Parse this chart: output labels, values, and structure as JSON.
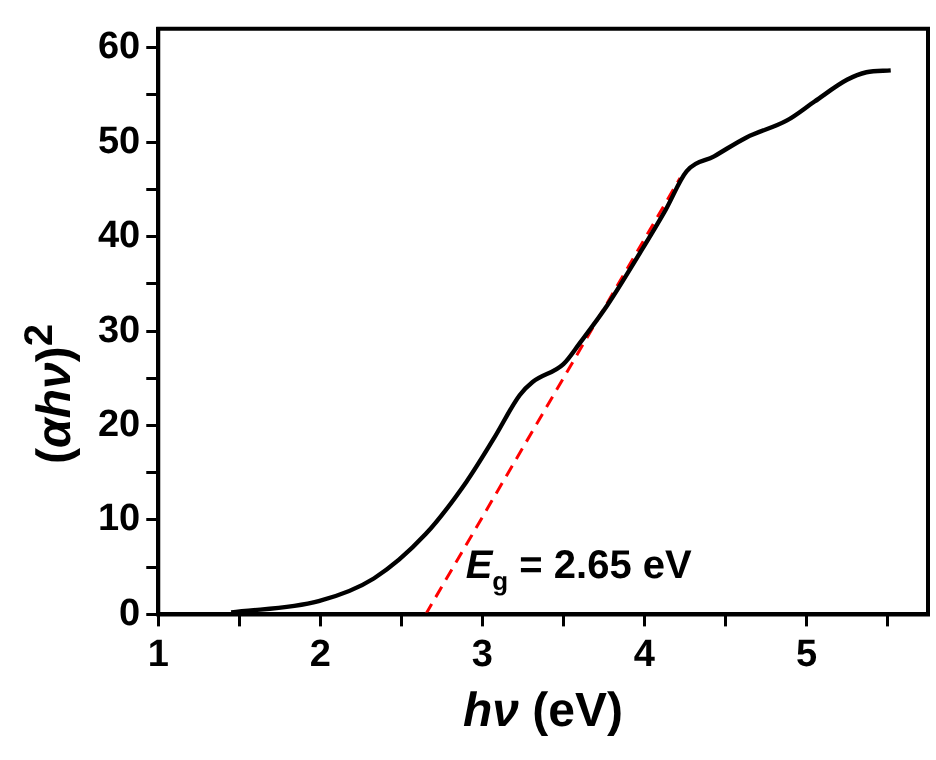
{
  "chart_data": {
    "type": "line",
    "xlabel": "hν (eV)",
    "ylabel": "(αhν)$^{2}$",
    "x": [
      1.45,
      1.99,
      2.33,
      2.65,
      2.9,
      3.07,
      3.23,
      3.31,
      3.5,
      3.6,
      3.77,
      3.97,
      4.13,
      4.26,
      4.43,
      4.63,
      4.88,
      5.05,
      5.25,
      5.37,
      5.52
    ],
    "series": [
      {
        "color": "#000000",
        "values": [
          0.2,
          1.4,
          3.8,
          8.5,
          14,
          18.6,
          23.2,
          24.6,
          26.5,
          28.7,
          32.7,
          38.2,
          42.8,
          46.9,
          48.5,
          50.5,
          52.3,
          54.3,
          56.6,
          57.4,
          57.6
        ]
      },
      {
        "type": "line",
        "color": "#ff0000",
        "line_style": "dashed",
        "x": [
          2.65,
          4.22
        ],
        "values": [
          0,
          46.2
        ]
      }
    ],
    "xlim": [
      1,
      5.75
    ],
    "xticks": [
      1,
      {
        "value": 1.5,
        "label": null
      },
      2,
      {
        "value": 2.5,
        "label": null
      },
      3,
      {
        "value": 3.5,
        "label": null
      },
      4,
      {
        "value": 4.5,
        "label": null
      },
      5,
      {
        "value": 5.5,
        "label": null
      }
    ],
    "ylim": [
      0,
      62
    ],
    "yticks": [
      0,
      {
        "value": 5,
        "label": null
      },
      10,
      {
        "value": 15,
        "label": null
      },
      20,
      {
        "value": 25,
        "label": null
      },
      30,
      {
        "value": 35,
        "label": null
      },
      40,
      {
        "value": 45,
        "label": null
      },
      50,
      {
        "value": 55,
        "label": null
      },
      60
    ],
    "annotations": [
      {
        "text": "E$_{g}$ = 2.65 eV",
        "x": 2.65,
        "y": 0
      }
    ],
    "grid": false,
    "legend": false,
    "marker": "none",
    "line_style": "solid"
  }
}
